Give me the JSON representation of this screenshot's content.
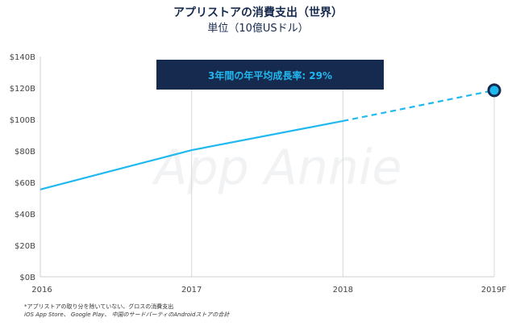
{
  "header": {
    "title": "アプリストアの消費支出（世界）",
    "subtitle": "単位（10億USドル）"
  },
  "footnotes": {
    "line1": "*アプリストアの取り分を除いていない、グロスの消費支出",
    "line2": "iOS App Store、 Google Play、 中国のサードパーティのAndroidストアの合計"
  },
  "watermark": "App Annie",
  "colors": {
    "line": "#1fb8ef",
    "annotation_bg": "#16294e",
    "annotation_text": "#1fb8ef",
    "title": "#16294e"
  },
  "chart_data": {
    "type": "line",
    "title": "アプリストアの消費支出（世界）",
    "subtitle": "単位（10億USドル）",
    "categories": [
      "2016",
      "2017",
      "2018",
      "2019F"
    ],
    "values": [
      55.5,
      80.5,
      99,
      118.5
    ],
    "forecast_from_index": 2,
    "yticks": [
      "$0B",
      "$20B",
      "$40B",
      "$60B",
      "$80B",
      "$100B",
      "$120B",
      "$140B"
    ],
    "ylim": [
      0,
      140
    ],
    "grid": "vertical",
    "annotation": "3年間の年平均成長率: 29%"
  }
}
